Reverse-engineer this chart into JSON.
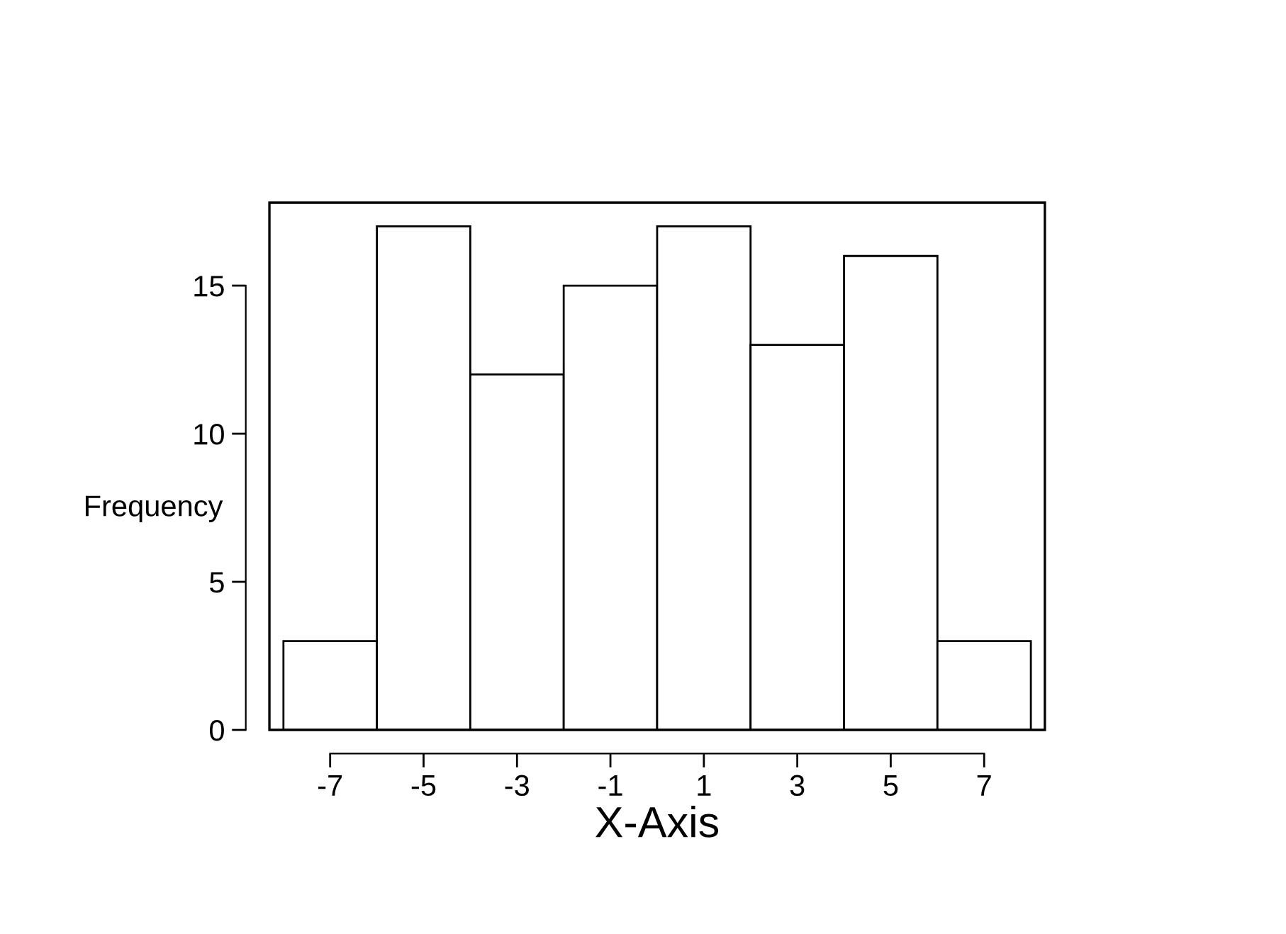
{
  "chart_data": {
    "type": "histogram",
    "xlabel": "X-Axis",
    "ylabel": "Frequency",
    "bins": [
      -8,
      -6,
      -4,
      -2,
      0,
      2,
      4,
      6,
      8
    ],
    "values": [
      3,
      17,
      12,
      15,
      17,
      13,
      16,
      3
    ],
    "color": "#ffffff",
    "xlim": [
      -8.3,
      8.3
    ],
    "ylim": [
      0,
      17.8
    ],
    "xticks": [
      -7,
      -5,
      -3,
      -1,
      1,
      3,
      5,
      7
    ],
    "yticks": [
      0,
      5,
      10,
      15
    ],
    "grid": false,
    "legend": false
  }
}
